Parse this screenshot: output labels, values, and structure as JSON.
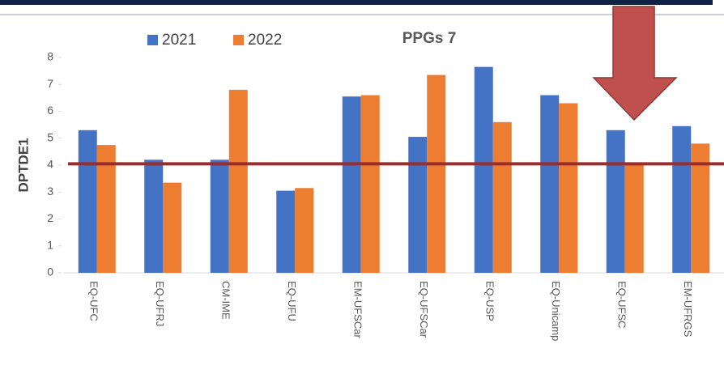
{
  "chart_data": {
    "type": "bar",
    "title": "PPGs 7",
    "y_label": "DPTDE1",
    "categories": [
      "EQ-UFC",
      "EQ-UFRJ",
      "CM-IME",
      "EQ-UFU",
      "EM-UFSCar",
      "EQ-UFSCar",
      "EQ-USP",
      "EQ-Unicamp",
      "EQ-UFSC",
      "EM-UFRGS"
    ],
    "series": [
      {
        "name": "2021",
        "color": "#4472c4",
        "values": [
          5.3,
          4.2,
          4.2,
          3.05,
          6.55,
          5.05,
          7.65,
          6.6,
          5.3,
          5.45
        ]
      },
      {
        "name": "2022",
        "color": "#ed7d31",
        "values": [
          4.75,
          3.35,
          6.8,
          3.15,
          6.6,
          7.35,
          5.6,
          6.3,
          4.1,
          4.8
        ]
      }
    ],
    "ylim": [
      0,
      8
    ],
    "yticks": [
      0,
      1,
      2,
      3,
      4,
      5,
      6,
      7,
      8
    ],
    "reference_line": 4.05,
    "reference_color": "#9b2d2d"
  }
}
